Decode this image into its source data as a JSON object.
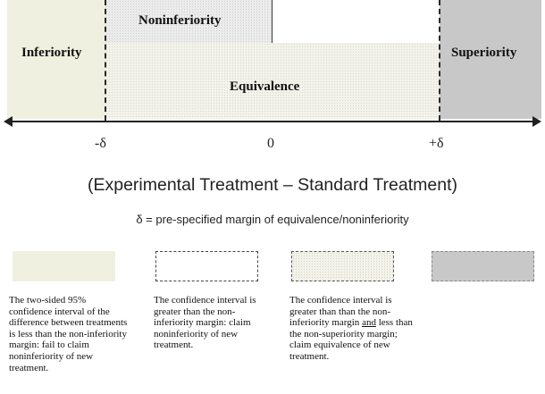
{
  "diagram": {
    "regions": {
      "inferiority": "Inferiority",
      "noninferiority": "Noninferiority",
      "equivalence": "Equivalence",
      "superiority": "Superiority"
    },
    "axis": {
      "ticks": [
        "-δ",
        "0",
        "+δ"
      ],
      "title": "(Experimental Treatment – Standard Treatment)",
      "delta_definition": "δ = pre-specified margin of equivalence/noninferiority"
    },
    "colors": {
      "inferiority_fill": "#f0f0e0",
      "noninferiority_fill": "#ececec",
      "equivalence_fill": "#f3f3ec",
      "superiority_fill": "#c8c8c8"
    }
  },
  "legend": [
    {
      "lines": [
        "The two-sided 95%",
        "confidence interval of the",
        "difference between treatments",
        "is less than the non-inferiority",
        "margin: fail to claim",
        "noninferiority of new",
        "treatment."
      ]
    },
    {
      "lines": [
        "The confidence interval is",
        "greater than the non-",
        "inferiority margin: claim",
        "noninferiority of new",
        "treatment."
      ]
    },
    {
      "line1": "The confidence interval is",
      "line2": "greater than than the non-",
      "line3_pre": "inferiority margin ",
      "line3_underlined": "and",
      "line3_post": " less than",
      "line4": "the non-superiority margin;",
      "line5": "claim equivalence of new",
      "line6": "treatment."
    }
  ]
}
